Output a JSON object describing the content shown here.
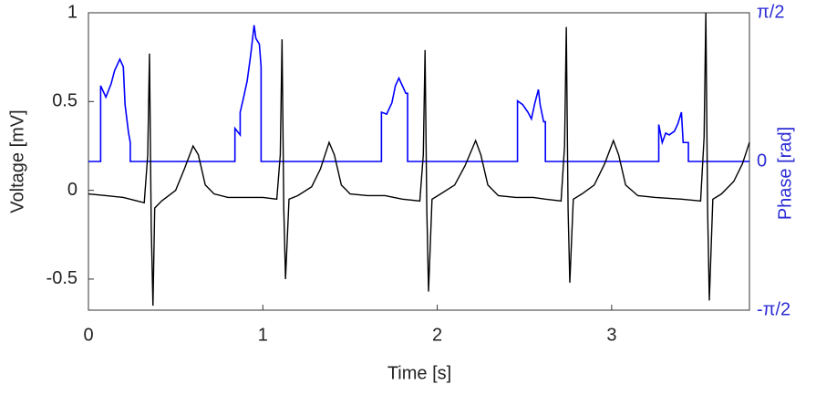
{
  "chart_data": {
    "type": "line",
    "xlabel": "Time [s]",
    "ylabel": "Voltage [mV]",
    "y2label": "Phase [rad]",
    "xlim": [
      0,
      3.79
    ],
    "xticks": [
      0,
      1,
      2,
      3
    ],
    "ylim": [
      -0.675,
      1
    ],
    "yticks": [
      -0.5,
      0,
      0.5,
      1
    ],
    "y2lim": [
      -1.5708,
      1.5708
    ],
    "y2ticks": [
      {
        "value": -1.5708,
        "label": "-π/2"
      },
      0,
      {
        "value": 1.5708,
        "label": "π/2"
      }
    ],
    "y2color": "#2b2bd6",
    "series": [
      {
        "name": "Voltage",
        "color": "#000000",
        "x": [
          0,
          0.1,
          0.2,
          0.28,
          0.32,
          0.34,
          0.35,
          0.36,
          0.37,
          0.38,
          0.42,
          0.5,
          0.55,
          0.6,
          0.63,
          0.67,
          0.72,
          0.8,
          0.9,
          1.0,
          1.08,
          1.1,
          1.11,
          1.12,
          1.13,
          1.15,
          1.2,
          1.28,
          1.33,
          1.38,
          1.41,
          1.45,
          1.5,
          1.6,
          1.7,
          1.8,
          1.9,
          1.92,
          1.93,
          1.94,
          1.95,
          1.97,
          2.02,
          2.1,
          2.16,
          2.22,
          2.25,
          2.29,
          2.35,
          2.45,
          2.55,
          2.62,
          2.71,
          2.73,
          2.74,
          2.75,
          2.76,
          2.78,
          2.83,
          2.9,
          2.96,
          3.01,
          3.04,
          3.08,
          3.15,
          3.25,
          3.4,
          3.51,
          3.53,
          3.54,
          3.55,
          3.56,
          3.58,
          3.63,
          3.7,
          3.75,
          3.79
        ],
        "values": [
          -0.02,
          -0.03,
          -0.04,
          -0.06,
          -0.07,
          0.2,
          0.77,
          -0.2,
          -0.65,
          -0.1,
          -0.06,
          0.0,
          0.12,
          0.25,
          0.2,
          0.03,
          -0.02,
          -0.04,
          -0.04,
          -0.04,
          -0.05,
          0.2,
          0.85,
          -0.1,
          -0.5,
          -0.05,
          -0.03,
          0.02,
          0.12,
          0.27,
          0.2,
          0.03,
          -0.02,
          -0.03,
          -0.03,
          -0.05,
          -0.06,
          0.2,
          0.79,
          -0.1,
          -0.57,
          -0.05,
          -0.02,
          0.03,
          0.14,
          0.28,
          0.2,
          0.03,
          -0.03,
          -0.04,
          -0.04,
          -0.05,
          -0.06,
          0.25,
          0.92,
          -0.1,
          -0.52,
          -0.05,
          -0.02,
          0.03,
          0.15,
          0.28,
          0.2,
          0.03,
          -0.03,
          -0.04,
          -0.05,
          -0.06,
          0.3,
          1.0,
          -0.1,
          -0.62,
          -0.05,
          -0.02,
          0.05,
          0.15,
          0.27
        ]
      },
      {
        "name": "Phase",
        "color": "#0000ff",
        "axis": "y2",
        "x": [
          0,
          0.07,
          0.07,
          0.1,
          0.13,
          0.15,
          0.18,
          0.2,
          0.21,
          0.23,
          0.24,
          0.24,
          0.84,
          0.84,
          0.87,
          0.87,
          0.89,
          0.91,
          0.93,
          0.95,
          0.96,
          0.98,
          0.99,
          0.99,
          1.68,
          1.68,
          1.71,
          1.74,
          1.76,
          1.78,
          1.8,
          1.82,
          1.83,
          1.83,
          2.46,
          2.46,
          2.49,
          2.52,
          2.54,
          2.56,
          2.58,
          2.59,
          2.61,
          2.62,
          2.62,
          3.27,
          3.27,
          3.29,
          3.31,
          3.33,
          3.36,
          3.38,
          3.4,
          3.41,
          3.43,
          3.44,
          3.44,
          3.79
        ],
        "values": [
          0,
          0,
          0.8,
          0.68,
          0.82,
          0.96,
          1.08,
          1.0,
          0.6,
          0.3,
          0.2,
          0,
          0,
          0.35,
          0.28,
          0.52,
          0.68,
          0.85,
          1.12,
          1.44,
          1.3,
          1.24,
          1.0,
          0,
          0,
          0.52,
          0.5,
          0.62,
          0.8,
          0.88,
          0.8,
          0.72,
          0.72,
          0,
          0,
          0.64,
          0.6,
          0.52,
          0.45,
          0.62,
          0.76,
          0.6,
          0.42,
          0.42,
          0,
          0,
          0.39,
          0.2,
          0.3,
          0.28,
          0.32,
          0.4,
          0.52,
          0.2,
          0.2,
          0.2,
          0,
          0
        ]
      }
    ]
  }
}
